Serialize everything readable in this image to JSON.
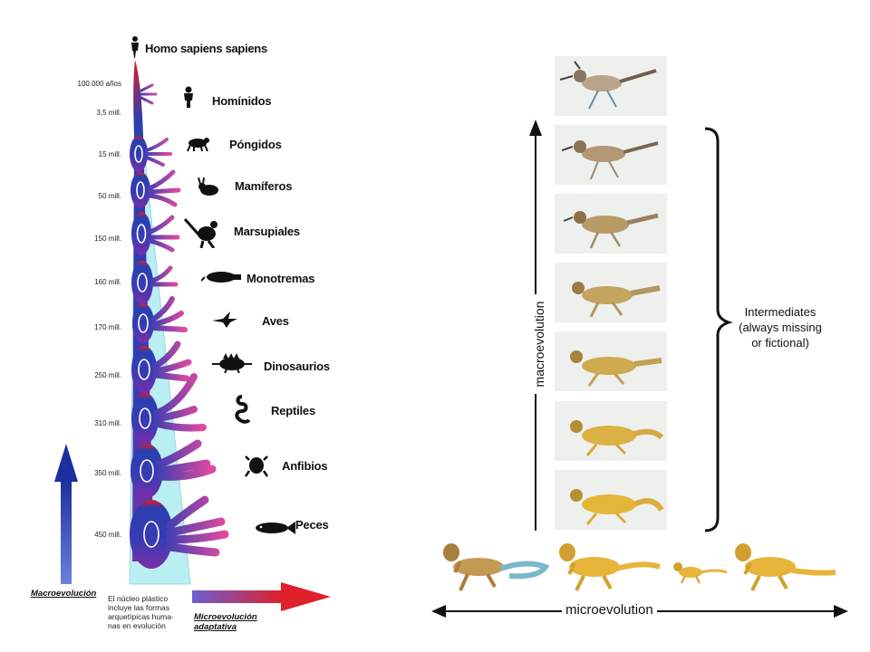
{
  "left_diagram": {
    "top_label": "Homo sapiens sapiens",
    "time_ticks": [
      "100.000 años",
      "3,5 mill.",
      "15 mill.",
      "50 mill.",
      "150 mill.",
      "160 mill.",
      "170 mill.",
      "250 mill.",
      "310 mill.",
      "350 mill.",
      "450 mill."
    ],
    "groups": [
      "Homínidos",
      "Póngidos",
      "Mamíferos",
      "Marsupiales",
      "Monotremas",
      "Aves",
      "Dinosaurios",
      "Reptiles",
      "Anfibios",
      "Peces"
    ],
    "macro_label": "Macroevolución",
    "micro_label_line1": "Microevolución",
    "micro_label_line2": "adaptativa",
    "core_note": [
      "El núcleo plástico",
      "incluye las formas",
      "arquetípicas huma-",
      "nas en evolución"
    ]
  },
  "right_diagram": {
    "vertical_axis_label": "macroevolution",
    "horizontal_axis_label": "microevolution",
    "brace_label": [
      "Intermediates",
      "(always missing",
      "or fictional)"
    ],
    "frame_count": 7
  },
  "colors": {
    "macro_arrow": "#2233aa",
    "micro_arrow": "#dd2222",
    "trunk_blue": "#2a3fb0",
    "branch_pink": "#d2479a",
    "core_cyan": "#b7ecf0",
    "lizard_yellow": "#e6b53a"
  }
}
